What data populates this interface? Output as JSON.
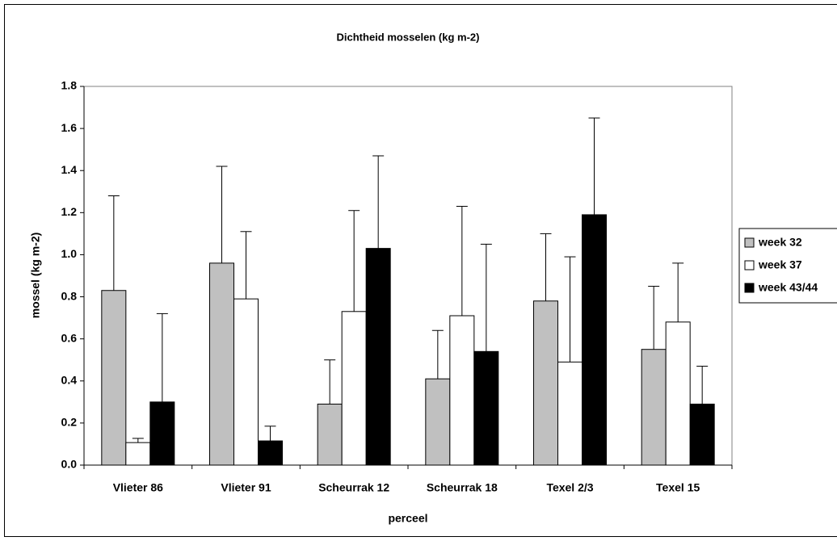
{
  "chart_data": {
    "type": "bar",
    "title": "Dichtheid mosselen (kg m-2)",
    "x_label": "perceel",
    "y_label": "mossel (kg m-2)",
    "categories": [
      "Vlieter 86",
      "Vlieter 91",
      "Scheurrak 12",
      "Scheurrak 18",
      "Texel 2/3",
      "Texel 15"
    ],
    "series": [
      {
        "name": "week 32",
        "color": "#c0c0c0",
        "values": [
          0.83,
          0.96,
          0.29,
          0.41,
          0.78,
          0.55
        ],
        "errors": [
          0.45,
          0.46,
          0.21,
          0.23,
          0.32,
          0.3
        ]
      },
      {
        "name": "week 37",
        "color": "#ffffff",
        "values": [
          0.107,
          0.79,
          0.73,
          0.71,
          0.49,
          0.68
        ],
        "errors": [
          0.02,
          0.32,
          0.48,
          0.52,
          0.5,
          0.28
        ]
      },
      {
        "name": "week 43/44",
        "color": "#000000",
        "values": [
          0.3,
          0.115,
          1.03,
          0.54,
          1.19,
          0.29
        ],
        "errors": [
          0.42,
          0.07,
          0.44,
          0.51,
          0.46,
          0.18
        ]
      }
    ],
    "ylim": [
      0,
      1.8
    ],
    "yticks": [
      {
        "value": 0,
        "label": "0.0"
      },
      0.2,
      0.4,
      0.6,
      0.8,
      {
        "value": 1,
        "label": "1.0"
      },
      1.2,
      1.4,
      1.6,
      1.8
    ],
    "grid": false,
    "legend": "right"
  }
}
